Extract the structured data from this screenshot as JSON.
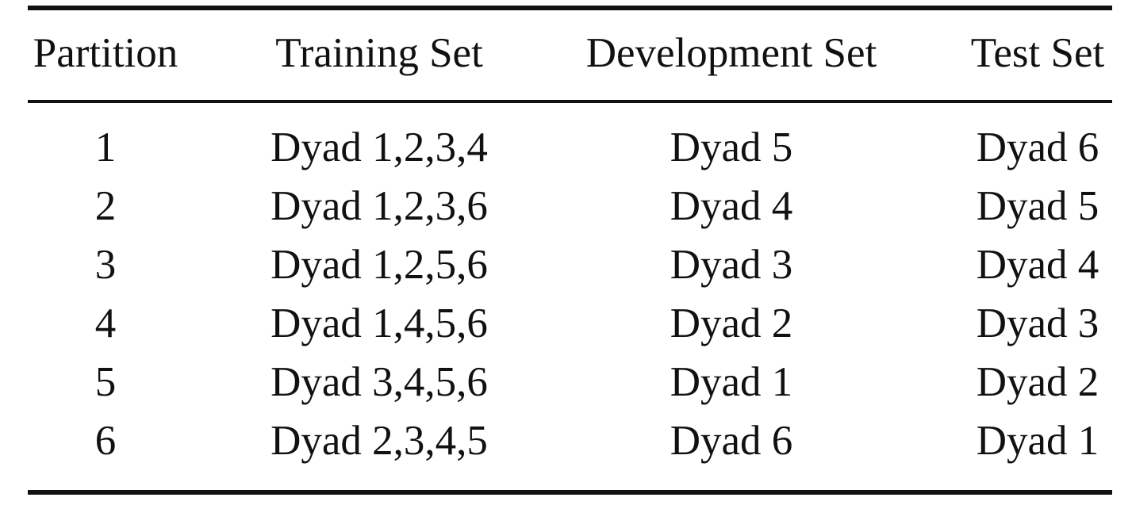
{
  "table": {
    "columns": [
      "Partition",
      "Training Set",
      "Development Set",
      "Test Set"
    ],
    "rows": [
      [
        "1",
        "Dyad 1,2,3,4",
        "Dyad 5",
        "Dyad 6"
      ],
      [
        "2",
        "Dyad 1,2,3,6",
        "Dyad 4",
        "Dyad 5"
      ],
      [
        "3",
        "Dyad 1,2,5,6",
        "Dyad 3",
        "Dyad 4"
      ],
      [
        "4",
        "Dyad 1,4,5,6",
        "Dyad 2",
        "Dyad 3"
      ],
      [
        "5",
        "Dyad 3,4,5,6",
        "Dyad 1",
        "Dyad 2"
      ],
      [
        "6",
        "Dyad 2,3,4,5",
        "Dyad 6",
        "Dyad 1"
      ]
    ]
  }
}
